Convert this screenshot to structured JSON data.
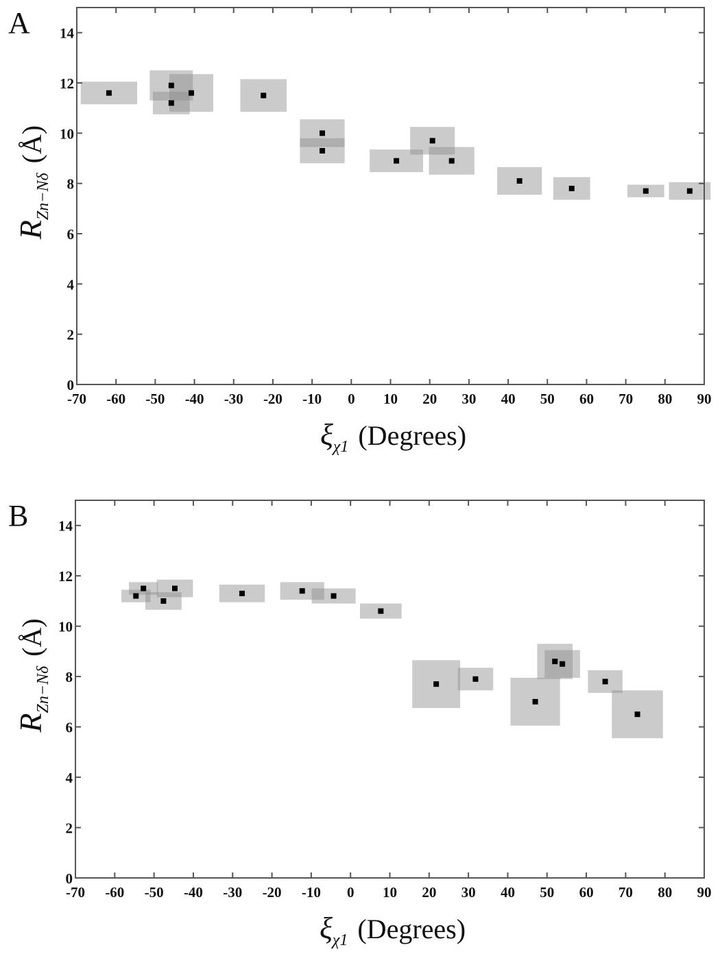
{
  "figure": {
    "panels": [
      {
        "letter": "A",
        "xlabel_symbol": "ξ",
        "xlabel_sub": "χ1",
        "xlabel_unit": "(Degrees)",
        "ylabel_symbol": "R",
        "ylabel_sub": "Zn−Nδ",
        "ylabel_unit": "(Å)"
      },
      {
        "letter": "B",
        "xlabel_symbol": "ξ",
        "xlabel_sub": "χ1",
        "xlabel_unit": "(Degrees)",
        "ylabel_symbol": "R",
        "ylabel_sub": "Zn−Nδ",
        "ylabel_unit": "(Å)"
      }
    ]
  },
  "colors": {
    "box_fill": "#c8c8c8",
    "box_overlap": "#a0a0a0",
    "marker": "#000000",
    "axis": "#555555"
  },
  "chart_data": [
    {
      "panel": "A",
      "type": "scatter",
      "title": "",
      "xlabel": "ξχ1 (Degrees)",
      "ylabel": "R Zn−Nδ (Å)",
      "xlim": [
        -70,
        90
      ],
      "ylim": [
        0,
        15
      ],
      "xticks": [
        -70,
        -60,
        -50,
        -40,
        -30,
        -20,
        -10,
        0,
        10,
        20,
        30,
        40,
        50,
        60,
        70,
        80,
        90
      ],
      "yticks": [
        0,
        2,
        4,
        6,
        8,
        10,
        12,
        14
      ],
      "grid": false,
      "points": [
        {
          "x": -61.8,
          "y": 11.6,
          "xerr": 7.2,
          "yerr": 0.45
        },
        {
          "x": -45.9,
          "y": 11.9,
          "xerr": 5.5,
          "yerr": 0.6
        },
        {
          "x": -45.9,
          "y": 11.2,
          "xerr": 4.7,
          "yerr": 0.45
        },
        {
          "x": -40.8,
          "y": 11.6,
          "xerr": 5.6,
          "yerr": 0.75
        },
        {
          "x": -22.4,
          "y": 11.5,
          "xerr": 5.9,
          "yerr": 0.65
        },
        {
          "x": -7.4,
          "y": 10.0,
          "xerr": 5.7,
          "yerr": 0.55
        },
        {
          "x": -7.4,
          "y": 9.3,
          "xerr": 5.7,
          "yerr": 0.5
        },
        {
          "x": 11.5,
          "y": 8.9,
          "xerr": 6.8,
          "yerr": 0.45
        },
        {
          "x": 20.7,
          "y": 9.7,
          "xerr": 5.7,
          "yerr": 0.55
        },
        {
          "x": 25.6,
          "y": 8.9,
          "xerr": 5.8,
          "yerr": 0.55
        },
        {
          "x": 42.9,
          "y": 8.1,
          "xerr": 5.7,
          "yerr": 0.55
        },
        {
          "x": 56.2,
          "y": 7.8,
          "xerr": 4.7,
          "yerr": 0.45
        },
        {
          "x": 75.1,
          "y": 7.7,
          "xerr": 4.7,
          "yerr": 0.25
        },
        {
          "x": 86.3,
          "y": 7.7,
          "xerr": 5.3,
          "yerr": 0.35
        }
      ]
    },
    {
      "panel": "B",
      "type": "scatter",
      "title": "",
      "xlabel": "ξχ1 (Degrees)",
      "ylabel": "R Zn−Nδ (Å)",
      "xlim": [
        -70,
        90
      ],
      "ylim": [
        0,
        15
      ],
      "xticks": [
        -70,
        -60,
        -50,
        -40,
        -30,
        -20,
        -10,
        0,
        10,
        20,
        30,
        40,
        50,
        60,
        70,
        80,
        90
      ],
      "yticks": [
        0,
        2,
        4,
        6,
        8,
        10,
        12,
        14
      ],
      "grid": false,
      "points": [
        {
          "x": -54.6,
          "y": 11.2,
          "xerr": 3.7,
          "yerr": 0.25
        },
        {
          "x": -52.7,
          "y": 11.5,
          "xerr": 3.7,
          "yerr": 0.25
        },
        {
          "x": -47.6,
          "y": 11.0,
          "xerr": 4.6,
          "yerr": 0.35
        },
        {
          "x": -44.7,
          "y": 11.5,
          "xerr": 4.6,
          "yerr": 0.35
        },
        {
          "x": -27.6,
          "y": 11.3,
          "xerr": 5.8,
          "yerr": 0.35
        },
        {
          "x": -12.3,
          "y": 11.4,
          "xerr": 5.6,
          "yerr": 0.35
        },
        {
          "x": -4.3,
          "y": 11.2,
          "xerr": 5.6,
          "yerr": 0.3
        },
        {
          "x": 7.7,
          "y": 10.6,
          "xerr": 5.3,
          "yerr": 0.3
        },
        {
          "x": 21.8,
          "y": 7.7,
          "xerr": 6.1,
          "yerr": 0.95
        },
        {
          "x": 31.8,
          "y": 7.9,
          "xerr": 4.5,
          "yerr": 0.45
        },
        {
          "x": 47.0,
          "y": 7.0,
          "xerr": 6.3,
          "yerr": 0.95
        },
        {
          "x": 52.0,
          "y": 8.6,
          "xerr": 4.5,
          "yerr": 0.7
        },
        {
          "x": 53.9,
          "y": 8.5,
          "xerr": 4.5,
          "yerr": 0.55
        },
        {
          "x": 64.8,
          "y": 7.8,
          "xerr": 4.4,
          "yerr": 0.45
        },
        {
          "x": 73.0,
          "y": 6.5,
          "xerr": 6.5,
          "yerr": 0.95
        }
      ]
    }
  ]
}
